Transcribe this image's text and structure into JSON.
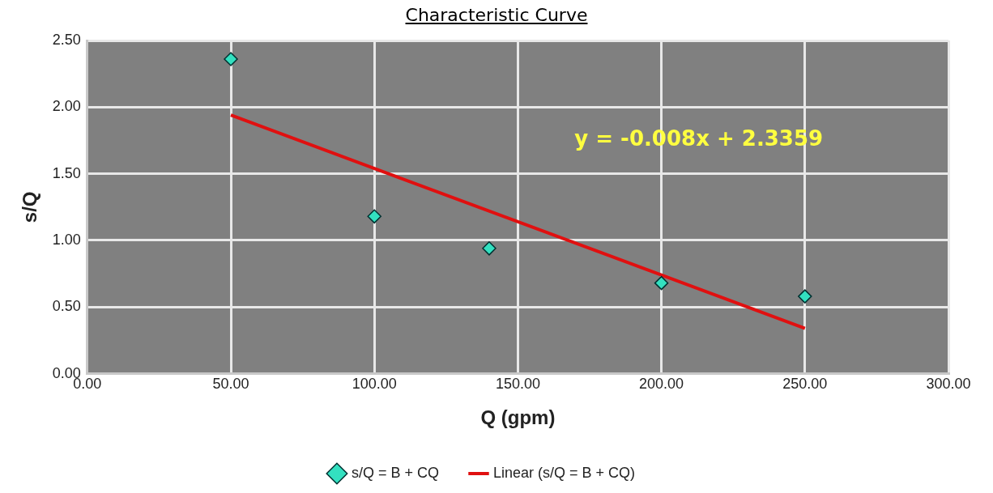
{
  "chart_data": {
    "type": "scatter",
    "title": "Characteristic Curve",
    "xlabel": "Q (gpm)",
    "ylabel": "s/Q",
    "xlim": [
      0,
      300
    ],
    "xticks": [
      {
        "value": 0,
        "label": "0.00"
      },
      {
        "value": 50,
        "label": "50.00"
      },
      {
        "value": 100,
        "label": "100.00"
      },
      {
        "value": 150,
        "label": "150.00"
      },
      {
        "value": 200,
        "label": "200.00"
      },
      {
        "value": 250,
        "label": "250.00"
      },
      {
        "value": 300,
        "label": "300.00"
      }
    ],
    "ylim": [
      0,
      2.5
    ],
    "yticks": [
      {
        "value": 0,
        "label": "0.00"
      },
      {
        "value": 0.5,
        "label": "0.50"
      },
      {
        "value": 1,
        "label": "1.00"
      },
      {
        "value": 1.5,
        "label": "1.50"
      },
      {
        "value": 2,
        "label": "2.00"
      },
      {
        "value": 2.5,
        "label": "2.50"
      }
    ],
    "grid": true,
    "legend": "bottom",
    "series": [
      {
        "name": "s/Q = B + CQ",
        "marker": "diamond",
        "color": "#33e0c0",
        "x": [
          50,
          100,
          140,
          200,
          250
        ],
        "values": [
          2.36,
          1.18,
          0.94,
          0.68,
          0.58
        ]
      },
      {
        "name": "Linear (s/Q = B + CQ)",
        "type": "line",
        "marker": "none",
        "color": "#e01010",
        "x": [
          50,
          250
        ],
        "values": [
          1.94,
          0.34
        ]
      }
    ],
    "annotations": [
      "y = -0.008x + 2.3359"
    ]
  }
}
